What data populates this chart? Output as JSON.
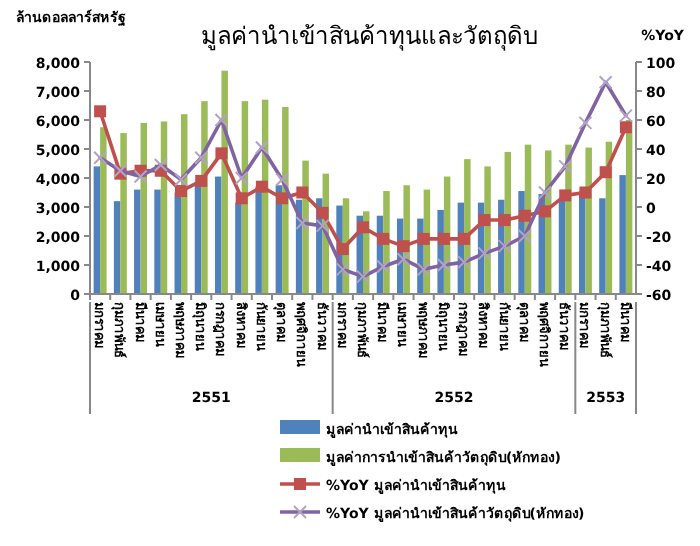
{
  "chart_data": {
    "type": "bar",
    "title": "มูลค่านำเข้าสินค้าทุนและวัตถุดิบ",
    "ylabel": "ล้านดอลลาร์สหรัฐ",
    "y2label": "%YoY",
    "categories": [
      "มกราคม",
      "กุมภาพันธ์",
      "มีนาคม",
      "เมษายน",
      "พฤษภาคม",
      "มิถุนายน",
      "กรกฎาคม",
      "สิงหาคม",
      "กันยายน",
      "ตุลาคม",
      "พฤศจิกายน",
      "ธันวาคม",
      "มกราคม",
      "กุมภาพันธ์",
      "มีนาคม",
      "เมษายน",
      "พฤษภาคม",
      "มิถุนายน",
      "กรกฎาคม",
      "สิงหาคม",
      "กันยายน",
      "ตุลาคม",
      "พฤศจิกายน",
      "ธันวาคม",
      "มกราคม",
      "กุมภาพันธ์",
      "มีนาคม"
    ],
    "series": [
      {
        "name": "มูลค่านำเข้าสินค้าทุน",
        "color": "#4f81bd",
        "values": [
          4400,
          3200,
          3600,
          3600,
          3500,
          3850,
          4050,
          3150,
          3700,
          3750,
          3250,
          3300,
          3050,
          2700,
          2700,
          2600,
          2600,
          2900,
          3150,
          3150,
          3250,
          3550,
          3450,
          3250,
          3550,
          3300,
          4100
        ]
      },
      {
        "name": "มูลค่าการนำเข้าสินค้าวัตถุดิบ(หักทอง)",
        "color": "#9bbb59",
        "values": [
          5750,
          5550,
          5900,
          5950,
          6200,
          6650,
          7700,
          6650,
          6700,
          6450,
          4600,
          4150,
          3300,
          2850,
          3550,
          3750,
          3600,
          4050,
          4650,
          4400,
          4900,
          5150,
          4950,
          5150,
          5050,
          5250,
          6000
        ]
      },
      {
        "name": "%YoY มูลค่านำเข้าสินค้าทุน",
        "type": "line",
        "axis": "y2",
        "marker": "square",
        "color": "#c0504d",
        "values": [
          66,
          23,
          25,
          25,
          11,
          18,
          37,
          6,
          14,
          6,
          10,
          -4,
          -29,
          -14,
          -22,
          -27,
          -22,
          -22,
          -22,
          -9,
          -9,
          -6,
          -3,
          8,
          10,
          24,
          55
        ]
      },
      {
        "name": "%YoY มูลค่านำเข้าสินค้าวัตถุดิบ(หักทอง)",
        "type": "line",
        "axis": "y2",
        "marker": "cross",
        "color": "#8064a2",
        "values": [
          34,
          25,
          21,
          29,
          19,
          34,
          60,
          20,
          41,
          19,
          -11,
          -13,
          -43,
          -48,
          -41,
          -36,
          -43,
          -40,
          -38,
          -32,
          -27,
          -20,
          10,
          28,
          58,
          86,
          63
        ]
      }
    ],
    "ylim": [
      0,
      8000
    ],
    "yticks": [
      {
        "value": 0,
        "label": "0"
      },
      {
        "value": 1000,
        "label": "1,000"
      },
      {
        "value": 2000,
        "label": "2,000"
      },
      {
        "value": 3000,
        "label": "3,000"
      },
      {
        "value": 4000,
        "label": "4,000"
      },
      {
        "value": 5000,
        "label": "5,000"
      },
      {
        "value": 6000,
        "label": "6,000"
      },
      {
        "value": 7000,
        "label": "7,000"
      },
      {
        "value": 8000,
        "label": "8,000"
      }
    ],
    "y2lim": [
      -60,
      100
    ],
    "y2ticks": [
      -60,
      -40,
      -20,
      0,
      20,
      40,
      60,
      80,
      100
    ],
    "annotations": [
      "2551",
      "2552",
      "2553"
    ],
    "legend": "bottom"
  }
}
